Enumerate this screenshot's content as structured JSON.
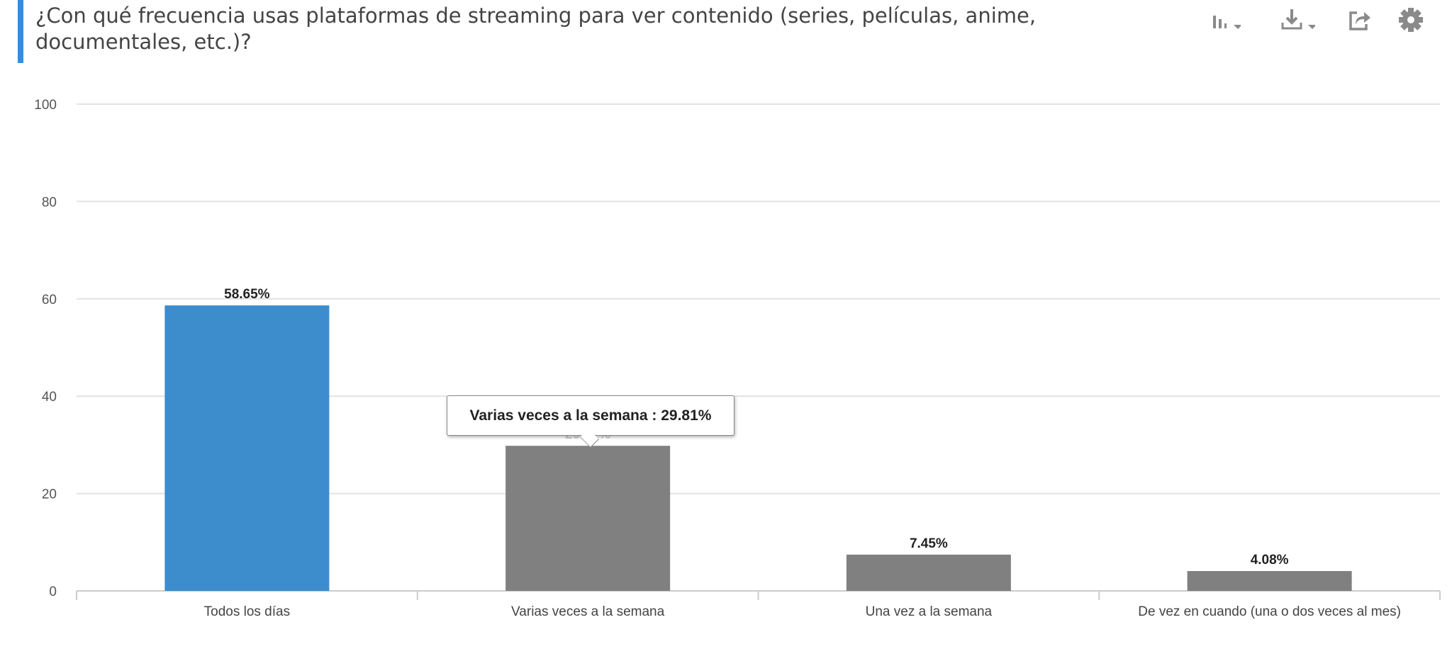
{
  "header": {
    "title": "¿Con qué frecuencia usas plataformas de streaming para ver contenido (series, películas, anime, documentales, etc.)?"
  },
  "toolbar": {
    "icons": [
      "bar-chart-icon",
      "download-icon",
      "share-icon",
      "gear-icon"
    ]
  },
  "tooltip": {
    "text": "Varias veces a la semana : 29.81%"
  },
  "chart_data": {
    "type": "bar",
    "title": "¿Con qué frecuencia usas plataformas de streaming para ver contenido (series, películas, anime, documentales, etc.)?",
    "categories": [
      "Todos los días",
      "Varias veces a la semana",
      "Una vez a la semana",
      "De vez en cuando (una o dos veces al mes)"
    ],
    "values": [
      58.65,
      29.81,
      7.45,
      4.08
    ],
    "labels": [
      "58.65%",
      "29.81%",
      "7.45%",
      "4.08%"
    ],
    "colors": [
      "#3d8dcd",
      "#808080",
      "#808080",
      "#808080"
    ],
    "ylim": [
      0,
      100
    ],
    "yticks": [
      0,
      20,
      40,
      60,
      80,
      100
    ],
    "grid": true,
    "xlabel": "",
    "ylabel": ""
  }
}
